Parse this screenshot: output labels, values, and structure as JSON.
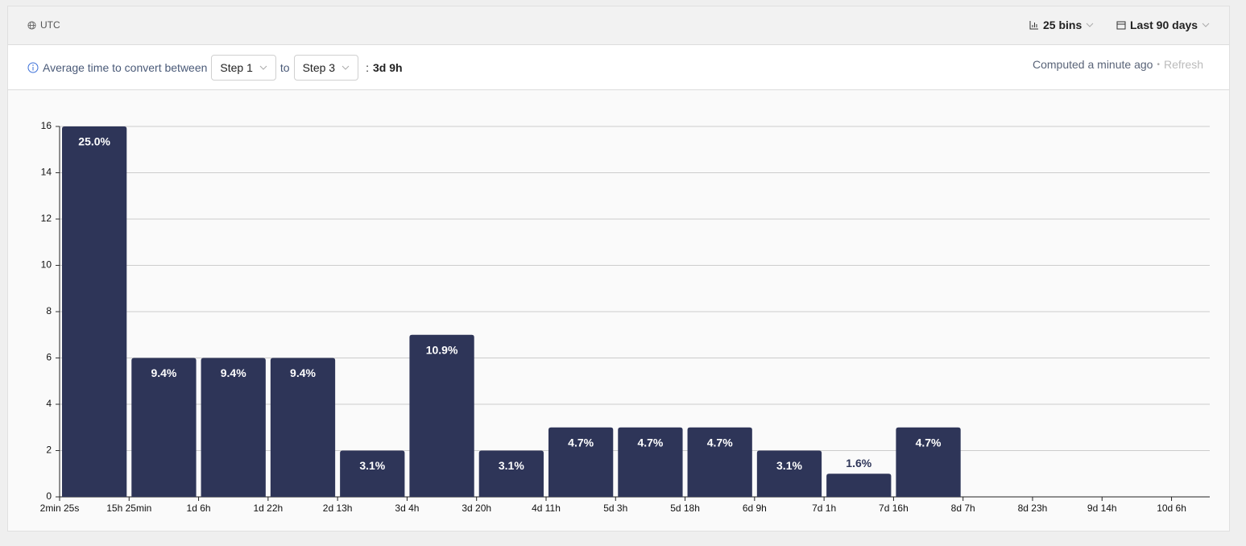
{
  "header": {
    "timezone": "UTC",
    "bins": "25 bins",
    "date_range": "Last 90 days"
  },
  "toolbar": {
    "label": "Average time to convert between",
    "from_step": "Step 1",
    "connector": "to",
    "to_step": "Step 3",
    "separator": ":",
    "average": "3d 9h",
    "computed": "Computed a minute ago",
    "bullet": "•",
    "refresh": "Refresh"
  },
  "chart_data": {
    "type": "histogram",
    "bins": [
      "2min 25s",
      "15h 25min",
      "1d 6h",
      "1d 22h",
      "2d 13h",
      "3d 4h",
      "3d 20h",
      "4d 11h",
      "5d 3h",
      "5d 18h",
      "6d 9h",
      "7d 1h",
      "7d 16h",
      "8d 7h",
      "8d 23h",
      "9d 14h",
      "10d 6h"
    ],
    "values": [
      16,
      6,
      6,
      6,
      2,
      7,
      2,
      3,
      3,
      3,
      2,
      1,
      3,
      0,
      0,
      0
    ],
    "bar_labels": [
      "25.0%",
      "9.4%",
      "9.4%",
      "9.4%",
      "3.1%",
      "10.9%",
      "3.1%",
      "4.7%",
      "4.7%",
      "4.7%",
      "3.1%",
      "1.6%",
      "4.7%",
      null,
      null,
      null
    ],
    "color": "#2e3558",
    "ylim": [
      0,
      16
    ],
    "yticks": [
      0,
      2,
      4,
      6,
      8,
      10,
      12,
      14,
      16
    ],
    "grid": true
  }
}
